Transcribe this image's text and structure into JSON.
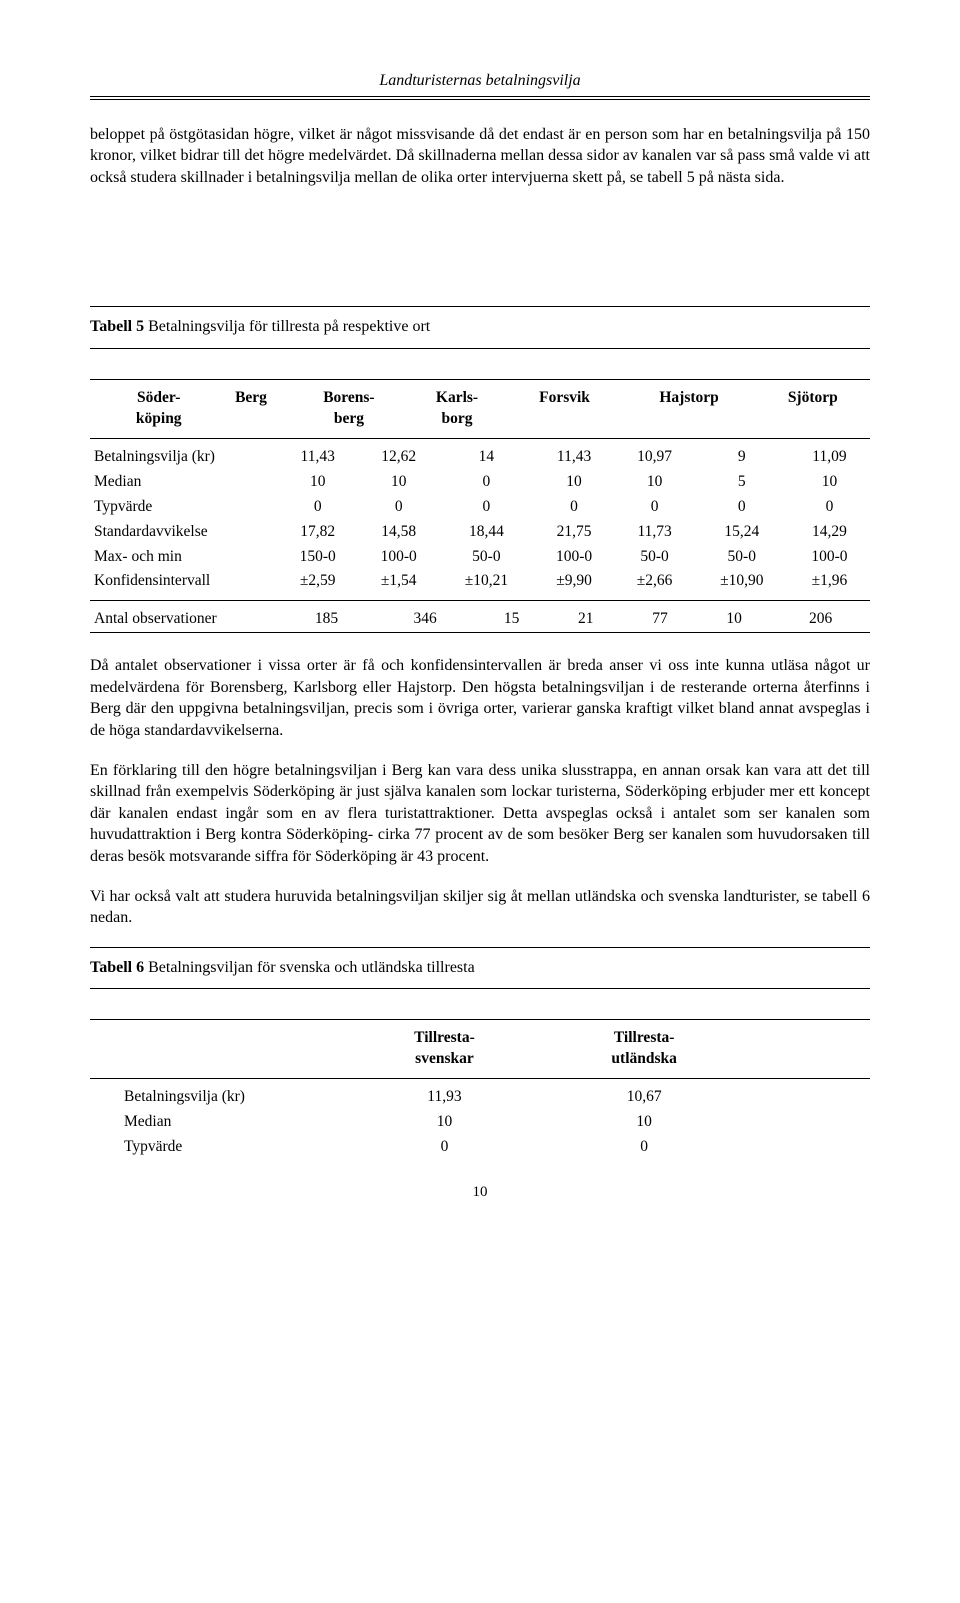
{
  "header": {
    "title": "Landturisternas betalningsvilja"
  },
  "paragraphs": {
    "intro1": "beloppet på östgötasidan högre, vilket är något missvisande då det endast är en person som har en betalningsvilja på 150 kronor, vilket bidrar till det högre medelvärdet. Då skillnaderna mellan dessa sidor av kanalen var så pass små valde vi att också studera skillnader i betalningsvilja mellan de olika orter intervjuerna skett på, se tabell 5 på nästa sida.",
    "after_table5_p1": "Då antalet observationer i vissa orter är få och konfidensintervallen är breda anser vi oss inte kunna utläsa något ur medelvärdena för Borensberg, Karlsborg eller Hajstorp. Den högsta betalningsviljan i de resterande orterna återfinns i Berg där den uppgivna betalningsviljan, precis som i övriga orter, varierar ganska kraftigt vilket bland annat avspeglas i de höga standardavvikelserna.",
    "after_table5_p2": "En förklaring till den högre betalningsviljan i Berg kan vara dess unika slusstrappa, en annan orsak kan vara att det till skillnad från exempelvis Söderköping är just själva kanalen som lockar turisterna, Söderköping erbjuder mer ett koncept där kanalen endast ingår som en av flera turistattraktioner. Detta avspeglas också i antalet som ser kanalen som huvudattraktion i Berg kontra Söderköping- cirka 77 procent av de som besöker Berg ser kanalen som huvudorsaken till deras besök motsvarande siffra för Söderköping är 43 procent.",
    "after_table5_p3": "Vi har också valt att studera huruvida betalningsviljan skiljer sig åt mellan utländska och svenska landturister, se tabell 6 nedan."
  },
  "table5": {
    "caption_bold": "Tabell 5",
    "caption_rest": " Betalningsvilja för tillresta på respektive ort",
    "columns": [
      "",
      "Söder-köping",
      "Berg",
      "Borens-berg",
      "Karls-borg",
      "Forsvik",
      "Hajstorp",
      "Sjötorp"
    ],
    "rows": [
      [
        "Betalningsvilja (kr)",
        "11,43",
        "12,62",
        "14",
        "11,43",
        "10,97",
        "9",
        "11,09"
      ],
      [
        "Median",
        "10",
        "10",
        "0",
        "10",
        "10",
        "5",
        "10"
      ],
      [
        "Typvärde",
        "0",
        "0",
        "0",
        "0",
        "0",
        "0",
        "0"
      ],
      [
        "Standardavvikelse",
        "17,82",
        "14,58",
        "18,44",
        "21,75",
        "11,73",
        "15,24",
        "14,29"
      ],
      [
        "Max- och min",
        "150-0",
        "100-0",
        "50-0",
        "100-0",
        "50-0",
        "50-0",
        "100-0"
      ],
      [
        "Konfidensintervall",
        "±2,59",
        "±1,54",
        "±10,21",
        "±9,90",
        "±2,66",
        "±10,90",
        "±1,96"
      ]
    ],
    "footer_row": [
      "Antal observationer",
      "185",
      "346",
      "15",
      "21",
      "77",
      "10",
      "206"
    ]
  },
  "table6": {
    "caption_bold": "Tabell 6",
    "caption_rest": " Betalningsviljan för svenska och utländska tillresta",
    "columns": [
      "",
      "Tillresta-svenskar",
      "Tillresta-utländska"
    ],
    "rows": [
      [
        "Betalningsvilja (kr)",
        "11,93",
        "10,67"
      ],
      [
        "Median",
        "10",
        "10"
      ],
      [
        "Typvärde",
        "0",
        "0"
      ]
    ]
  },
  "footer": {
    "page": "10"
  }
}
